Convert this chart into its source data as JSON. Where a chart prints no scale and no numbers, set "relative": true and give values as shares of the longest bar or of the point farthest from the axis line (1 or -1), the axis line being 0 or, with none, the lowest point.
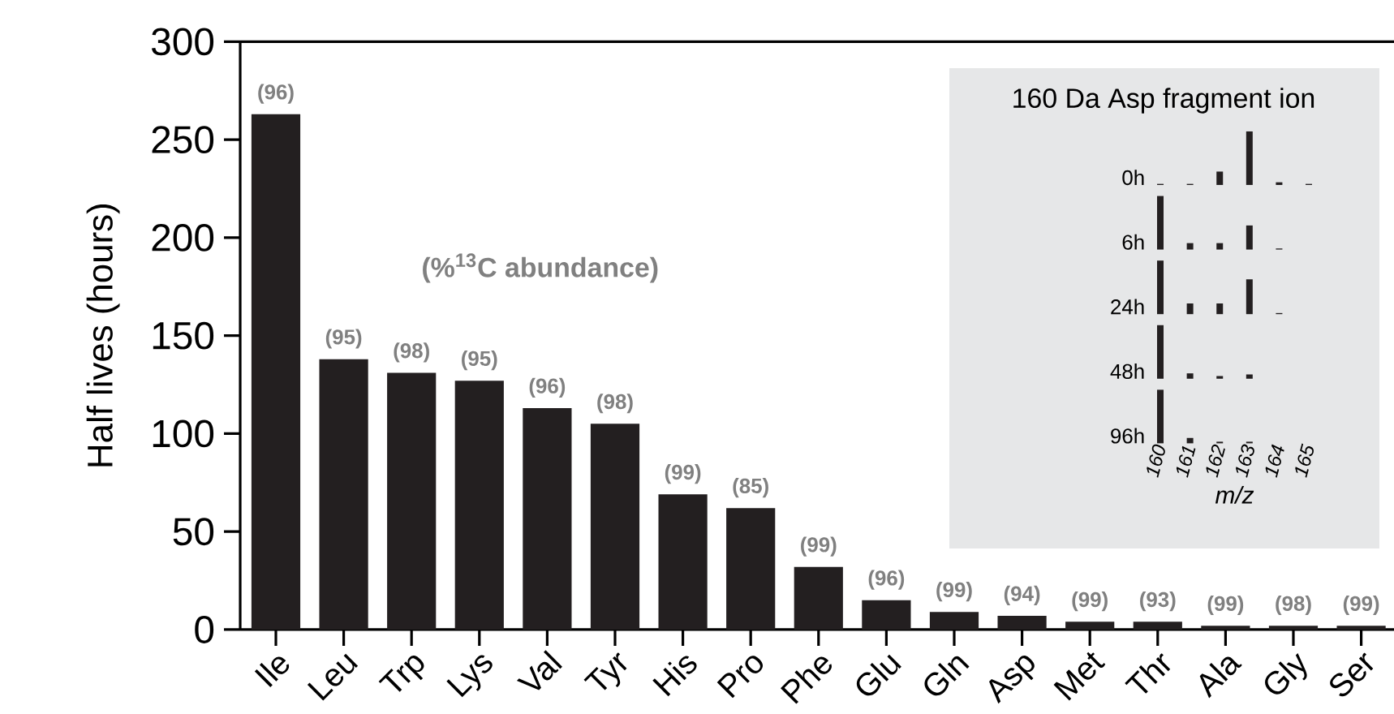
{
  "chart_data": [
    {
      "type": "bar",
      "ylabel": "Half lives (hours)",
      "categories": [
        "Ile",
        "Leu",
        "Trp",
        "Lys",
        "Val",
        "Tyr",
        "His",
        "Pro",
        "Phe",
        "Glu",
        "Gln",
        "Asp",
        "Met",
        "Thr",
        "Ala",
        "Gly",
        "Ser"
      ],
      "values": [
        263,
        138,
        131,
        127,
        113,
        105,
        69,
        62,
        32,
        15,
        9,
        7,
        4,
        4,
        2,
        2,
        2
      ],
      "color": "#231f20",
      "ylim": [
        0,
        300
      ],
      "yticks": [
        0,
        50,
        100,
        150,
        200,
        250,
        300
      ],
      "annotations": [
        "(%$^{13}$C abundance)",
        {
          "text": "(96)",
          "x": "Ile",
          "y": 263
        },
        {
          "text": "(95)",
          "x": "Leu",
          "y": 138
        },
        {
          "text": "(98)",
          "x": "Trp",
          "y": 131
        },
        {
          "text": "(95)",
          "x": "Lys",
          "y": 127
        },
        {
          "text": "(96)",
          "x": "Val",
          "y": 113
        },
        {
          "text": "(98)",
          "x": "Tyr",
          "y": 105
        },
        {
          "text": "(99)",
          "x": "His",
          "y": 69
        },
        {
          "text": "(85)",
          "x": "Pro",
          "y": 62
        },
        {
          "text": "(99)",
          "x": "Phe",
          "y": 32
        },
        {
          "text": "(96)",
          "x": "Glu",
          "y": 15
        },
        {
          "text": "(99)",
          "x": "Gln",
          "y": 9
        },
        {
          "text": "(94)",
          "x": "Asp",
          "y": 7
        },
        {
          "text": "(99)",
          "x": "Met",
          "y": 4
        },
        {
          "text": "(93)",
          "x": "Thr",
          "y": 4
        },
        {
          "text": "(99)",
          "x": "Ala",
          "y": 2
        },
        {
          "text": "(98)",
          "x": "Gly",
          "y": 2
        },
        {
          "text": "(99)",
          "x": "Ser",
          "y": 2
        }
      ]
    },
    {
      "type": "bar",
      "title": "160 Da Asp fragment ion",
      "relative": true,
      "tick_labels": false,
      "categories": [
        "160",
        "161",
        "162",
        "163",
        "164",
        "165"
      ],
      "series": [
        {
          "name": "0h",
          "color": "#231f20",
          "values": [
            0.02,
            0.02,
            0.25,
            1.0,
            0.05,
            0.02
          ]
        }
      ]
    },
    {
      "type": "bar",
      "relative": true,
      "tick_labels": false,
      "categories": [
        "160",
        "161",
        "162",
        "163",
        "164",
        "165"
      ],
      "series": [
        {
          "name": "6h",
          "color": "#231f20",
          "values": [
            1.0,
            0.12,
            0.12,
            0.45,
            0.02,
            null
          ]
        }
      ]
    },
    {
      "type": "bar",
      "relative": true,
      "tick_labels": false,
      "categories": [
        "160",
        "161",
        "162",
        "163",
        "164",
        "165"
      ],
      "series": [
        {
          "name": "24h",
          "color": "#231f20",
          "values": [
            1.0,
            0.2,
            0.2,
            0.65,
            0.02,
            null
          ]
        }
      ]
    },
    {
      "type": "bar",
      "relative": true,
      "tick_labels": false,
      "categories": [
        "160",
        "161",
        "162",
        "163",
        "164",
        "165"
      ],
      "series": [
        {
          "name": "48h",
          "color": "#231f20",
          "values": [
            1.0,
            0.1,
            0.05,
            0.08,
            null,
            null
          ]
        }
      ]
    },
    {
      "type": "bar",
      "xlabel": "m/z",
      "relative": true,
      "categories": [
        "160",
        "161",
        "162",
        "163",
        "164",
        "165"
      ],
      "series": [
        {
          "name": "96h",
          "color": "#231f20",
          "values": [
            1.0,
            0.1,
            0.03,
            0.03,
            null,
            null
          ]
        }
      ]
    }
  ]
}
